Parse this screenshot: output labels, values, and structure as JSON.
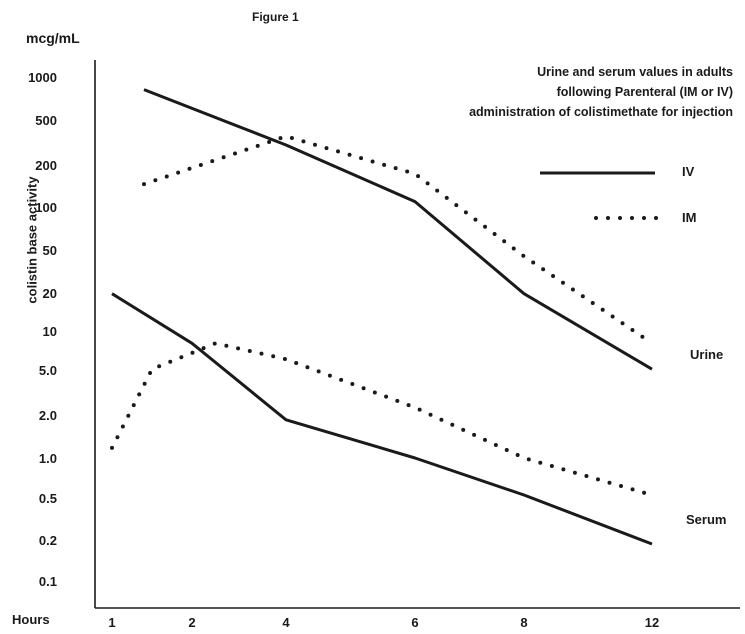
{
  "figure_title": "Figure 1",
  "description_lines": [
    "Urine and serum values in adults",
    "following Parenteral (IM or IV)",
    "administration of colistimethate for injection"
  ],
  "labels": {
    "urine": "Urine",
    "serum": "Serum"
  },
  "colors": {
    "ink": "#1a1a1a",
    "background": "#ffffff"
  },
  "chart_data": {
    "type": "line",
    "title": "Figure 1",
    "xlabel": "Hours",
    "ylabel": "colistin base activity",
    "yunit": "mcg/mL",
    "yscale": "log",
    "grid": false,
    "legend_position": "right",
    "x_ticks": [
      1,
      2,
      4,
      6,
      8,
      12
    ],
    "y_ticks": [
      "1000",
      "500",
      "200",
      "100",
      "50",
      "20",
      "10",
      "5.0",
      "2.0",
      "1.0",
      "0.5",
      "0.2",
      "0.1"
    ],
    "series": [
      {
        "name": "IV",
        "group": "Urine",
        "style": "solid",
        "x": [
          1.4,
          4,
          6,
          8,
          12
        ],
        "y": [
          800,
          300,
          110,
          20,
          5
        ]
      },
      {
        "name": "IM",
        "group": "Urine",
        "style": "dotted",
        "x": [
          1.4,
          4,
          6,
          8,
          12
        ],
        "y": [
          150,
          350,
          180,
          40,
          8
        ]
      },
      {
        "name": "IV",
        "group": "Serum",
        "style": "solid",
        "x": [
          1,
          2,
          4,
          6,
          8,
          12
        ],
        "y": [
          20,
          8,
          2.0,
          1.0,
          0.5,
          0.2
        ]
      },
      {
        "name": "IM",
        "group": "Serum",
        "style": "dotted",
        "x": [
          1,
          1.5,
          2.5,
          4,
          6,
          8,
          12
        ],
        "y": [
          1.2,
          5.0,
          8.0,
          6.0,
          2.5,
          1.0,
          0.5
        ]
      }
    ]
  }
}
